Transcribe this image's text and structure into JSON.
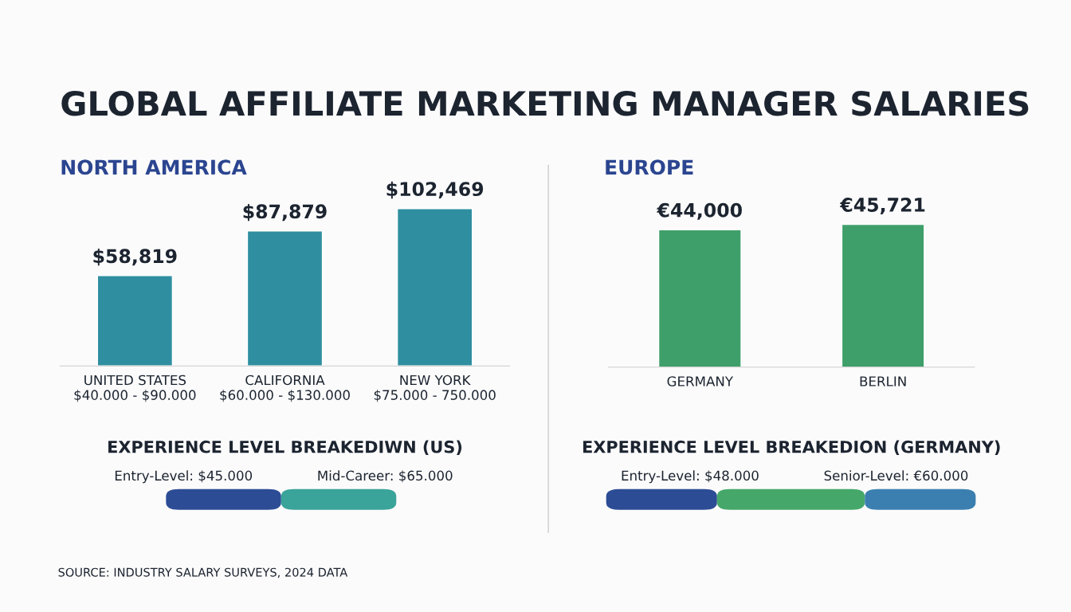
{
  "chart_data": [
    {
      "type": "bar",
      "title": "GLOBAL AFFILIATE MARKETING MANAGER SALARIES",
      "subtitle": "NORTH AMERICA",
      "categories": [
        "UNITED STATES\n$40.000 - $90.000",
        "CALIFORNIA\n$60.000 - $130.000",
        "NEW YORK\n$75.000 - 750.000"
      ],
      "values": [
        58819,
        87879,
        102469
      ],
      "value_labels": [
        "$58,819",
        "$87,879",
        "$102,469"
      ],
      "colors": [
        "#2f8fa0",
        "#2f8fa0",
        "#2f8fa0"
      ],
      "annotations": [
        "EXPERIENCE LEVEL BREAKEDIWN (US)",
        "Entry-Level: $45.000",
        "Mid-Career: $65.000",
        "SOURCE: INDUSTRY SALARY SURVEYS, 2024 DATA"
      ]
    },
    {
      "type": "bar",
      "title": "EUROPE",
      "categories": [
        "GERMANY",
        "BERLIN"
      ],
      "values": [
        44000,
        45721
      ],
      "value_labels": [
        "€44,000",
        "€45,721"
      ],
      "colors": [
        "#3f9f6a",
        "#3f9f6a"
      ],
      "annotations": [
        "EXPERIENCE LEVEL BREAKEDION (GERMANY)",
        "Entry-Level: $48.000",
        "Senior-Level: €60.000"
      ]
    }
  ]
}
